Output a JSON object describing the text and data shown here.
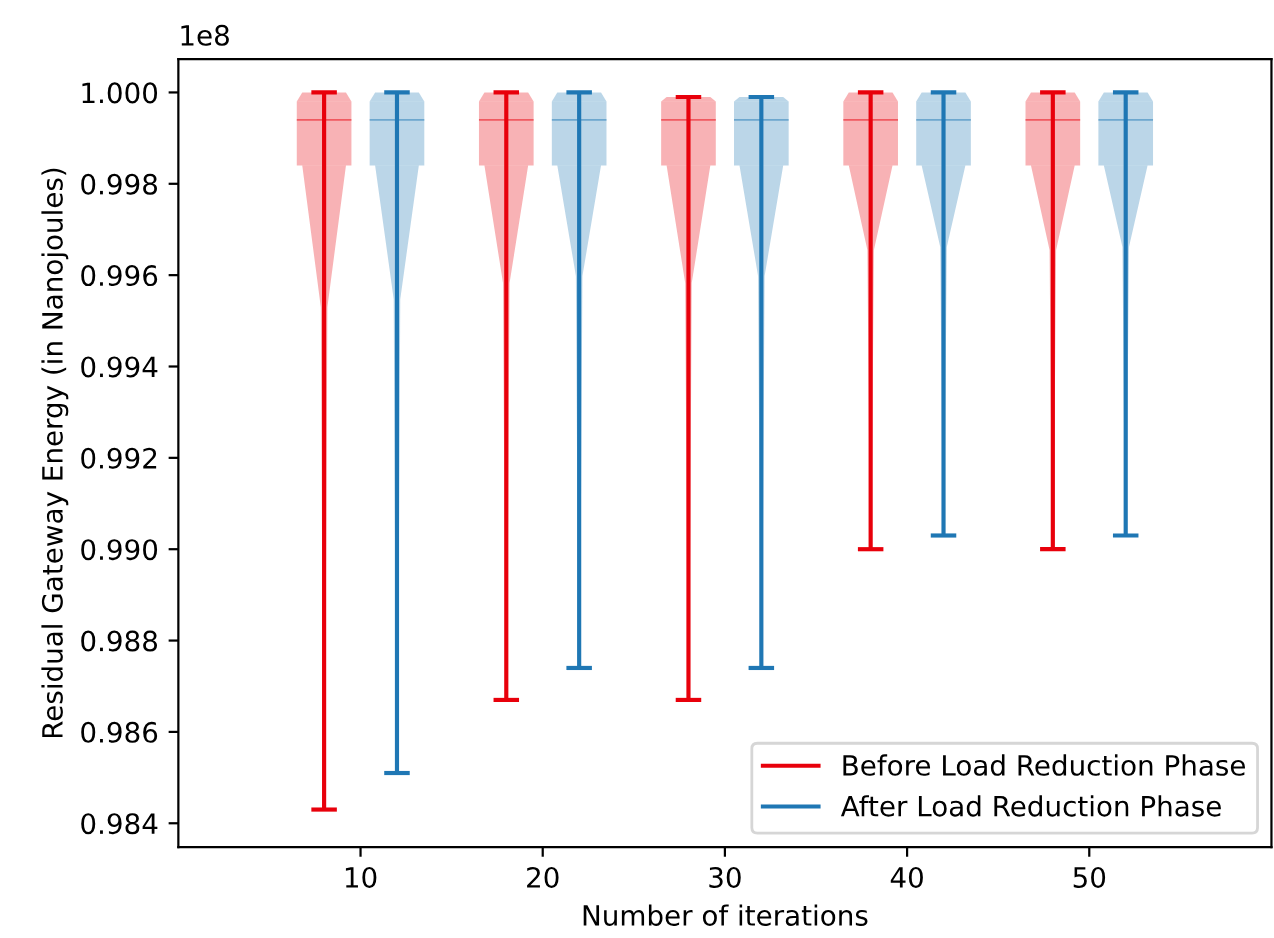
{
  "chart_data": {
    "type": "box",
    "xlabel": "Number of iterations",
    "ylabel": "Residual Gateway Energy (in Nanojoules)",
    "annotations": [
      "1e8"
    ],
    "xlim": [
      0,
      60
    ],
    "xticks": [
      10,
      20,
      30,
      40,
      50
    ],
    "ylim": [
      0.98348,
      1.00073
    ],
    "yticks": [
      {
        "value": 0.984,
        "label": "0.984"
      },
      {
        "value": 0.986,
        "label": "0.986"
      },
      {
        "value": 0.988,
        "label": "0.988"
      },
      {
        "value": 0.99,
        "label": "0.990"
      },
      {
        "value": 0.992,
        "label": "0.992"
      },
      {
        "value": 0.994,
        "label": "0.994"
      },
      {
        "value": 0.996,
        "label": "0.996"
      },
      {
        "value": 0.998,
        "label": "0.998"
      },
      {
        "value": 1.0,
        "label": "1.000"
      }
    ],
    "grid": false,
    "legend": "bottom right",
    "series": [
      {
        "name": "Before Load Reduction Phase",
        "color": "#e8000b",
        "x": [
          8,
          18,
          28,
          38,
          48
        ],
        "boxes": [
          {
            "low": 0.9843,
            "q1": 0.9984,
            "median": 0.9994,
            "q3": 0.9998,
            "high": 1.0
          },
          {
            "low": 0.9867,
            "q1": 0.9984,
            "median": 0.9994,
            "q3": 0.9998,
            "high": 1.0
          },
          {
            "low": 0.9867,
            "q1": 0.9984,
            "median": 0.9994,
            "q3": 0.9998,
            "high": 0.9999
          },
          {
            "low": 0.99,
            "q1": 0.9984,
            "median": 0.9994,
            "q3": 0.9998,
            "high": 1.0
          },
          {
            "low": 0.99,
            "q1": 0.9984,
            "median": 0.9994,
            "q3": 0.9998,
            "high": 1.0
          }
        ]
      },
      {
        "name": "After Load Reduction Phase",
        "color": "#1f77b4",
        "x": [
          12,
          22,
          32,
          42,
          52
        ],
        "boxes": [
          {
            "low": 0.9851,
            "q1": 0.9984,
            "median": 0.9994,
            "q3": 0.9998,
            "high": 1.0
          },
          {
            "low": 0.9874,
            "q1": 0.9984,
            "median": 0.9994,
            "q3": 0.9998,
            "high": 1.0
          },
          {
            "low": 0.9874,
            "q1": 0.9984,
            "median": 0.9994,
            "q3": 0.9998,
            "high": 0.9999
          },
          {
            "low": 0.9903,
            "q1": 0.9984,
            "median": 0.9994,
            "q3": 0.9998,
            "high": 1.0
          },
          {
            "low": 0.9903,
            "q1": 0.9984,
            "median": 0.9994,
            "q3": 0.9998,
            "high": 1.0
          }
        ]
      }
    ]
  }
}
